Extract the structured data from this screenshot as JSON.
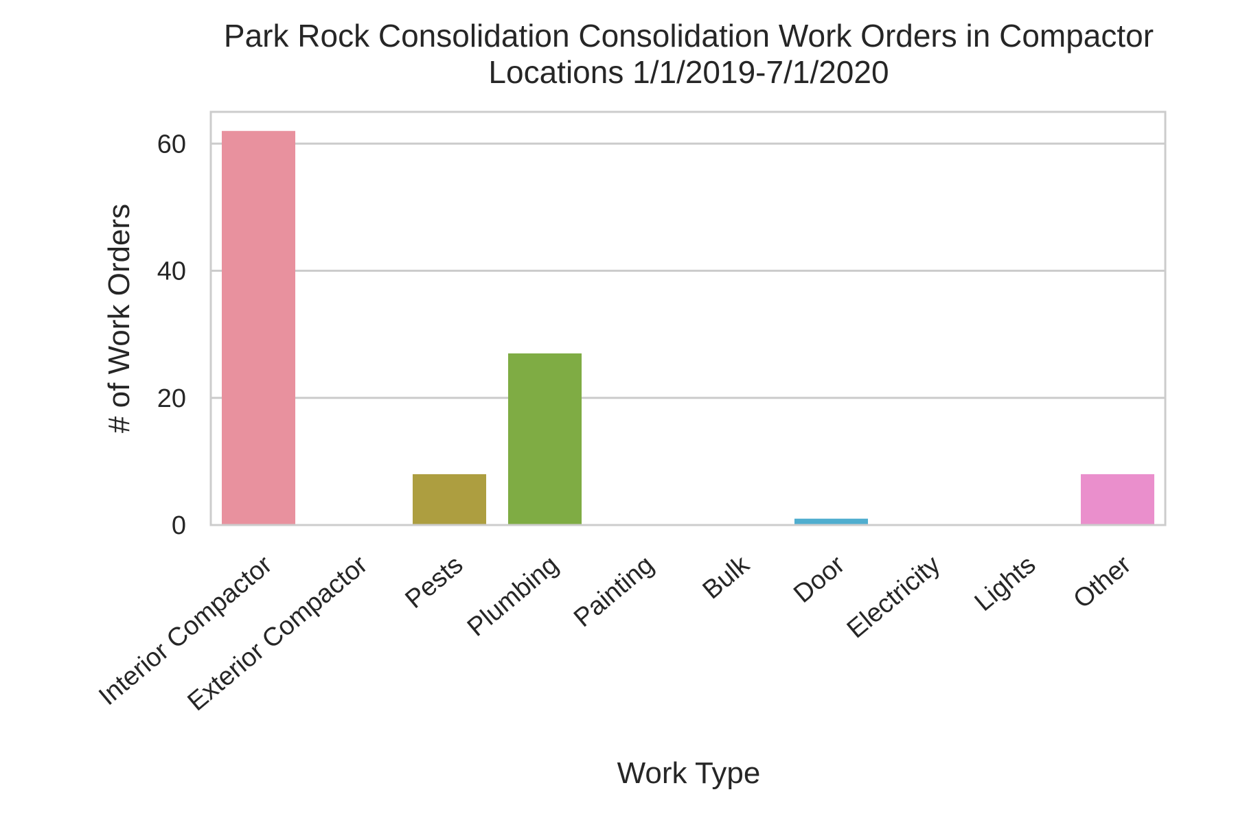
{
  "chart_data": {
    "type": "bar",
    "title": "Park Rock Consolidation Consolidation Work Orders in Compactor\nLocations 1/1/2019-7/1/2020",
    "title_lines": [
      "Park Rock Consolidation Consolidation Work Orders in Compactor",
      "Locations 1/1/2019-7/1/2020"
    ],
    "xlabel": "Work Type",
    "ylabel": "# of Work Orders",
    "categories": [
      "Interior Compactor",
      "Exterior Compactor",
      "Pests",
      "Plumbing",
      "Painting",
      "Bulk",
      "Door",
      "Electricity",
      "Lights",
      "Other"
    ],
    "values": [
      62,
      0,
      8,
      27,
      0,
      0,
      1,
      0,
      0,
      8
    ],
    "colors": [
      "#e8919e",
      "#e0926a",
      "#ad9e40",
      "#7fac44",
      "#5db88a",
      "#52b7b0",
      "#50aecf",
      "#9aa8e8",
      "#d495ea",
      "#ea8fcc"
    ],
    "ylim": [
      0,
      65
    ],
    "yticks": [
      0,
      20,
      40,
      60
    ],
    "grid": "horizontal"
  }
}
